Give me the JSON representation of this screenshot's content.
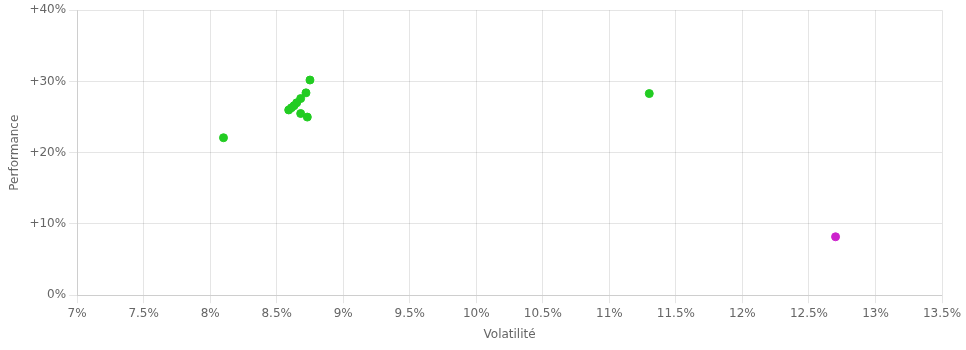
{
  "chart_data": {
    "type": "scatter",
    "xlabel": "Volatilité",
    "ylabel": "Performance",
    "xlim": [
      0.07,
      0.135
    ],
    "ylim": [
      0.0,
      0.4
    ],
    "xticks": [
      {
        "value": 0.07,
        "label": "7%"
      },
      {
        "value": 0.075,
        "label": "7.5%"
      },
      {
        "value": 0.08,
        "label": "8%"
      },
      {
        "value": 0.085,
        "label": "8.5%"
      },
      {
        "value": 0.09,
        "label": "9%"
      },
      {
        "value": 0.095,
        "label": "9.5%"
      },
      {
        "value": 0.1,
        "label": "10%"
      },
      {
        "value": 0.105,
        "label": "10.5%"
      },
      {
        "value": 0.11,
        "label": "11%"
      },
      {
        "value": 0.115,
        "label": "11.5%"
      },
      {
        "value": 0.12,
        "label": "12%"
      },
      {
        "value": 0.125,
        "label": "12.5%"
      },
      {
        "value": 0.13,
        "label": "13%"
      },
      {
        "value": 0.135,
        "label": "13.5%"
      }
    ],
    "yticks": [
      {
        "value": 0.0,
        "label": "0%"
      },
      {
        "value": 0.1,
        "label": "+10%"
      },
      {
        "value": 0.2,
        "label": "+20%"
      },
      {
        "value": 0.3,
        "label": "+30%"
      },
      {
        "value": 0.4,
        "label": "+40%"
      }
    ],
    "grid": true,
    "series": [
      {
        "color": "#22cc22",
        "x": [
          0.081,
          0.0875,
          0.0872,
          0.0868,
          0.0865,
          0.0863,
          0.0861,
          0.0859,
          0.0868,
          0.0873,
          0.113
        ],
        "values": [
          0.221,
          0.302,
          0.284,
          0.276,
          0.27,
          0.266,
          0.263,
          0.26,
          0.255,
          0.25,
          0.283
        ]
      },
      {
        "color": "#cc22cc",
        "x": [
          0.127
        ],
        "values": [
          0.082
        ]
      }
    ]
  }
}
